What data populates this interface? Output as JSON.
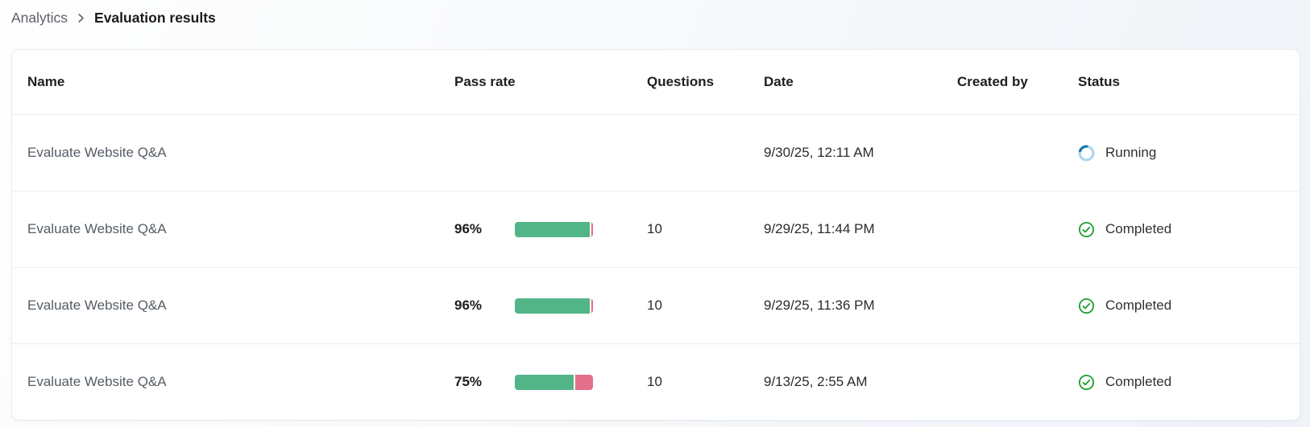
{
  "breadcrumb": {
    "items": [
      {
        "label": "Analytics"
      }
    ],
    "current": "Evaluation results"
  },
  "table": {
    "headers": {
      "name": "Name",
      "pass_rate": "Pass rate",
      "questions": "Questions",
      "date": "Date",
      "created_by": "Created by",
      "status": "Status"
    },
    "rows": [
      {
        "name": "Evaluate Website Q&A",
        "pass_rate": "",
        "pass_pct": null,
        "questions": "",
        "date": "9/30/25, 12:11 AM",
        "created_by": "",
        "status": "Running"
      },
      {
        "name": "Evaluate Website Q&A",
        "pass_rate": "96%",
        "pass_pct": 96,
        "questions": "10",
        "date": "9/29/25, 11:44 PM",
        "created_by": "",
        "status": "Completed"
      },
      {
        "name": "Evaluate Website Q&A",
        "pass_rate": "96%",
        "pass_pct": 96,
        "questions": "10",
        "date": "9/29/25, 11:36 PM",
        "created_by": "",
        "status": "Completed"
      },
      {
        "name": "Evaluate Website Q&A",
        "pass_rate": "75%",
        "pass_pct": 75,
        "questions": "10",
        "date": "9/13/25, 2:55 AM",
        "created_by": "",
        "status": "Completed"
      }
    ]
  },
  "colors": {
    "pass_green": "#52b588",
    "fail_red": "#e2708a",
    "running_arc": "#1474ab",
    "running_track": "#abd5ec",
    "completed_green": "#1b9e2b"
  }
}
